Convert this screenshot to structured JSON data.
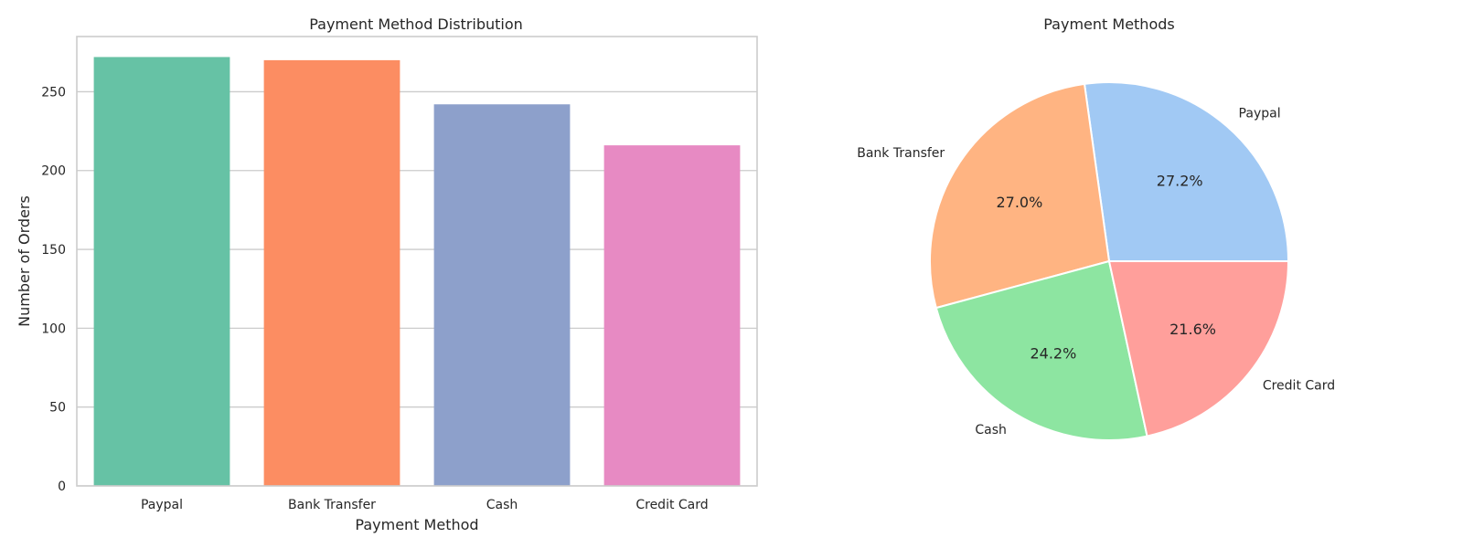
{
  "chart_data": [
    {
      "type": "bar",
      "title": "Payment Method Distribution",
      "xlabel": "Payment Method",
      "ylabel": "Number of Orders",
      "categories": [
        "Paypal",
        "Bank Transfer",
        "Cash",
        "Credit Card"
      ],
      "values": [
        272,
        270,
        242,
        216
      ],
      "ylim": [
        0,
        285
      ],
      "yticks": [
        0,
        50,
        100,
        150,
        200,
        250
      ],
      "grid": "horizontal",
      "colors": [
        "#66c2a5",
        "#fc8d62",
        "#8da0cb",
        "#e78ac3"
      ]
    },
    {
      "type": "pie",
      "title": "Payment Methods",
      "labels": [
        "Paypal",
        "Bank Transfer",
        "Cash",
        "Credit Card"
      ],
      "values": [
        272,
        270,
        242,
        216
      ],
      "percent_labels": [
        "27.2%",
        "27.0%",
        "24.2%",
        "21.6%"
      ],
      "colors": [
        "#a1c9f4",
        "#ffb482",
        "#8de5a1",
        "#ff9f9b"
      ]
    }
  ]
}
